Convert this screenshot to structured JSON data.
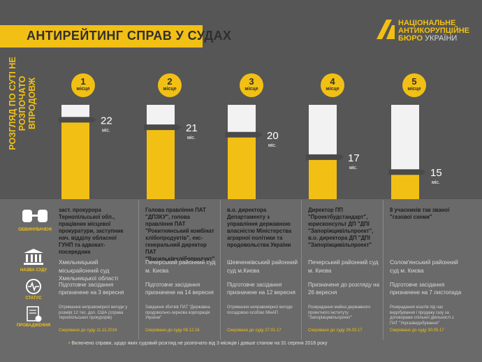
{
  "header": {
    "title": "АНТИРЕЙТИНГ СПРАВ У СУДАХ",
    "logo_line1": "НАЦІОНАЛЬНЕ",
    "logo_line2": "АНТИКОРУПЦІЙНЕ",
    "logo_line3a": "БЮРО",
    "logo_line3b": "УКРАЇНИ"
  },
  "colors": {
    "accent": "#f2c015",
    "bar_white": "#f2f2f2",
    "bar_yellow": "#f2c015",
    "background": "#565656"
  },
  "side_label": "РОЗГЛЯД ПО СУТІ НЕ РОЗПОЧАТО ВПРОДОВЖ",
  "row_labels": {
    "accused": "ОБВИНУВАЧЕНІ",
    "court": "НАЗВА СУДУ",
    "status": "СТАТУС",
    "proceeding": "ПРОВАДЖЕННЯ"
  },
  "place_word": "місце",
  "unit": "міс.",
  "chart_data": {
    "type": "bar",
    "title": "АНТИРЕЙТИНГ СПРАВ У СУДАХ",
    "ylabel": "РОЗГЛЯД ПО СУТІ НЕ РОЗПОЧАТО ВПРОДОВЖ",
    "categories": [
      "1",
      "2",
      "3",
      "4",
      "5"
    ],
    "values": [
      22,
      21,
      20,
      17,
      15
    ],
    "unit": "міс.",
    "ylim": [
      0,
      24
    ]
  },
  "cases": [
    {
      "rank": "1",
      "months": "22",
      "accused": "заст. прокурора Тернопільської обл., працівник місцевої прокуратури, заступник нач. відділу обласної ГУНП та адвокат-посередник",
      "court": "Хмельницький міськрайонний суд Хмельницької області",
      "status": "Підготовче засідання призначене на 3 вересня",
      "proceeding": "Отримання неправомірної вигоди у розмірі 12 тис. дол. США (справа тернопільських прокурорів)",
      "sent": "Скеровано до суду 11.11.2016"
    },
    {
      "rank": "2",
      "months": "21",
      "accused": "Голова правління ПАТ \"ДПЗКУ\", голова правління ПАТ \"Рокитнянський комбінат хлібопродуктів\", екс-генеральний директор ПАТ \"Васильківхлібопродукт\"",
      "court": "Печерський районний суд м. Києва",
      "status": "Підготовче засідання призначене на 14 вересня",
      "proceeding": "Завдання збитків ПАТ \"Державна продовольчо-зернова корпорація України\"",
      "sent": "Скеровано до суду 08.12.16"
    },
    {
      "rank": "3",
      "months": "20",
      "accused": "в.о. директора Департаменту з управління державною власністю Міністерства аграрної політики та продовольства України",
      "court": "Шевченківський районний суд м.Києва",
      "status": "Підготовче засідання призначене на 12 вересня",
      "proceeding": "Отримання неправомірної вигоди посадовою особою МінАП",
      "sent": "Скеровано до суду 27.01.17"
    },
    {
      "rank": "4",
      "months": "17",
      "accused": "Директор ПП \"Проектбудстандарт\", юрисконсульт ДП \"ДПІ \"Запоріжцивільпроект\", в.о. директора ДП \"ДПІ \"Запоріжцивільпроект\"",
      "court": "Печерський районний суд м. Києва",
      "status": "Призначене до розгляду на 26 вересня",
      "proceeding": "Розкрадання майна державного проектного інституту \"Запоріжцивільпроект\"",
      "sent": "Скеровано до суду 26.03.17"
    },
    {
      "rank": "5",
      "months": "15",
      "accused": "8 учасників так званої \"газової схеми\"",
      "court": "Солом'янський районний суд м. Києва",
      "status": "Підготовче засідання призначене на 7 листопада",
      "proceeding": "Розкрадання коштів під час видобування і продажу газу за договорами спільної діяльності з ПАТ \"Укргазвидобування\"",
      "sent": "Скеровано до суду 30.05.17"
    }
  ],
  "footnote": "Включено справи, щодо яких судовий розгляд не розпочато від 3 місяців і довше станом на 31 серпня 2018 року"
}
